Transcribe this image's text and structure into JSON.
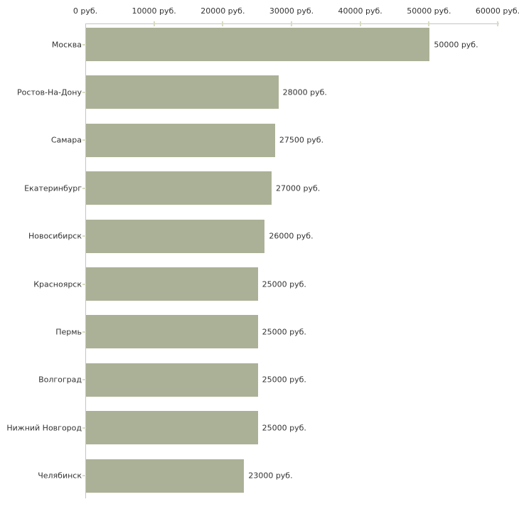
{
  "chart_data": {
    "type": "bar",
    "orientation": "horizontal",
    "title": "",
    "xlabel": "",
    "ylabel": "",
    "categories": [
      "Москва",
      "Ростов-На-Дону",
      "Самара",
      "Екатеринбург",
      "Новосибирск",
      "Красноярск",
      "Пермь",
      "Волгоград",
      "Нижний Новгород",
      "Челябинск"
    ],
    "values": [
      50000,
      28000,
      27500,
      27000,
      26000,
      25000,
      25000,
      25000,
      25000,
      23000
    ],
    "value_labels": [
      "50000 руб.",
      "28000 руб.",
      "27500 руб.",
      "27000 руб.",
      "26000 руб.",
      "25000 руб.",
      "25000 руб.",
      "25000 руб.",
      "25000 руб.",
      "23000 руб."
    ],
    "x_ticks": [
      {
        "value": 0,
        "label": "0 руб."
      },
      {
        "value": 10000,
        "label": "10000 руб."
      },
      {
        "value": 20000,
        "label": "20000 руб."
      },
      {
        "value": 30000,
        "label": "30000 руб."
      },
      {
        "value": 40000,
        "label": "40000 руб."
      },
      {
        "value": 50000,
        "label": "50000 руб."
      },
      {
        "value": 60000,
        "label": "60000 руб."
      }
    ],
    "xlim": [
      0,
      60000
    ],
    "grid": false,
    "legend": "none",
    "colors": {
      "bar": "#abb196",
      "axis_line": "#c5c5c5",
      "tick_mark": "#d9dcc0",
      "text": "#333333",
      "background": "#ffffff"
    }
  }
}
